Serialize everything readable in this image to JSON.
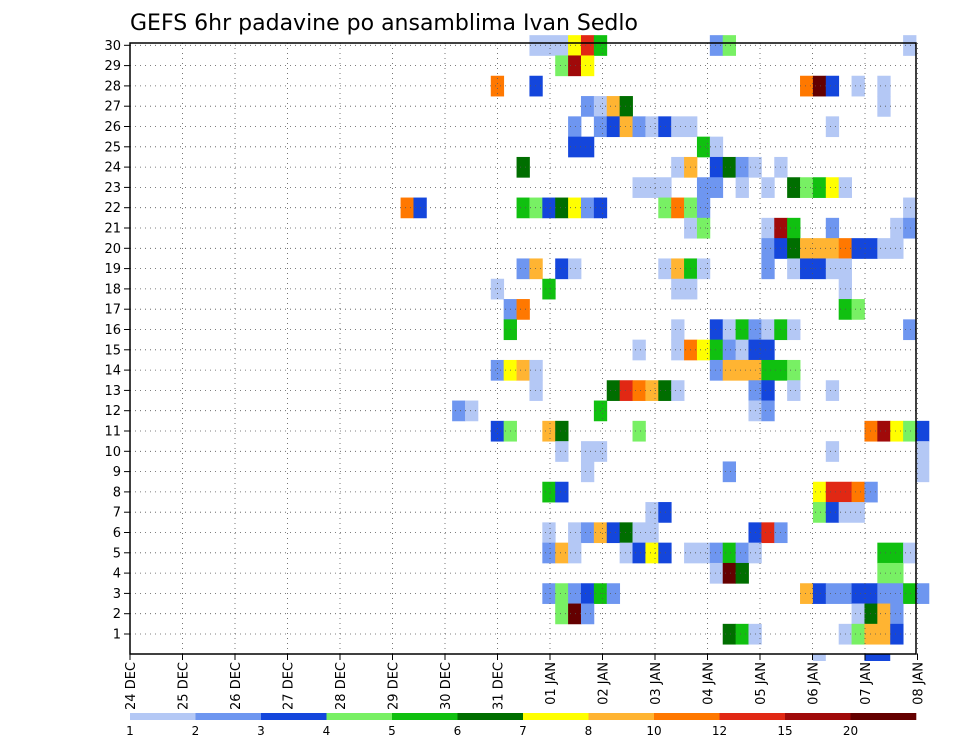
{
  "chart_data": {
    "type": "heatmap",
    "title": "GEFS 6hr padavine po ansamblima Ivan Sedlo",
    "y_ticks": [
      "1",
      "2",
      "3",
      "4",
      "5",
      "6",
      "7",
      "8",
      "9",
      "10",
      "11",
      "12",
      "13",
      "14",
      "15",
      "16",
      "17",
      "18",
      "19",
      "20",
      "21",
      "22",
      "23",
      "24",
      "25",
      "26",
      "27",
      "28",
      "29",
      "30"
    ],
    "x_ticks": [
      "24 DEC",
      "25 DEC",
      "26 DEC",
      "27 DEC",
      "28 DEC",
      "29 DEC",
      "30 DEC",
      "31 DEC",
      "01 JAN",
      "02 JAN",
      "03 JAN",
      "04 JAN",
      "05 JAN",
      "06 JAN",
      "07 JAN",
      "08 JAN"
    ],
    "legend_labels": [
      "1",
      "2",
      "3",
      "4",
      "5",
      "6",
      "7",
      "8",
      "10",
      "12",
      "15",
      "20"
    ],
    "legend_colors": [
      "#b4c8f5",
      "#6e96f0",
      "#1446dc",
      "#78f064",
      "#10c010",
      "#006e00",
      "#ffff00",
      "#ffb432",
      "#ff7800",
      "#e12814",
      "#a00a0a",
      "#640000"
    ],
    "grid": true,
    "cell_unit": "6h step",
    "cells": [
      {
        "m": 30,
        "s": [
          [
            31,
            3,
            0
          ],
          [
            34,
            1,
            6
          ],
          [
            35,
            1,
            9
          ],
          [
            36,
            1,
            4
          ],
          [
            45,
            1,
            1
          ],
          [
            46,
            1,
            3
          ],
          [
            60,
            1,
            0
          ]
        ]
      },
      {
        "m": 29,
        "s": [
          [
            33,
            1,
            3
          ],
          [
            34,
            1,
            10
          ],
          [
            35,
            1,
            6
          ]
        ]
      },
      {
        "m": 28,
        "s": [
          [
            28,
            1,
            8
          ],
          [
            31,
            1,
            2
          ],
          [
            52,
            1,
            8
          ],
          [
            53,
            1,
            11
          ],
          [
            54,
            1,
            2
          ],
          [
            56,
            1,
            0
          ],
          [
            58,
            1,
            0
          ]
        ]
      },
      {
        "m": 27,
        "s": [
          [
            35,
            1,
            1
          ],
          [
            36,
            1,
            0
          ],
          [
            37,
            1,
            7
          ],
          [
            38,
            1,
            5
          ],
          [
            58,
            1,
            0
          ]
        ]
      },
      {
        "m": 26,
        "s": [
          [
            34,
            1,
            1
          ],
          [
            36,
            1,
            1
          ],
          [
            37,
            1,
            2
          ],
          [
            38,
            1,
            7
          ],
          [
            39,
            1,
            1
          ],
          [
            40,
            1,
            0
          ],
          [
            41,
            1,
            2
          ],
          [
            42,
            2,
            0
          ],
          [
            54,
            1,
            0
          ]
        ]
      },
      {
        "m": 25,
        "s": [
          [
            34,
            2,
            2
          ],
          [
            44,
            1,
            4
          ],
          [
            45,
            1,
            0
          ]
        ]
      },
      {
        "m": 24,
        "s": [
          [
            30,
            1,
            5
          ],
          [
            42,
            1,
            0
          ],
          [
            43,
            1,
            7
          ],
          [
            45,
            1,
            2
          ],
          [
            46,
            1,
            5
          ],
          [
            47,
            1,
            1
          ],
          [
            48,
            1,
            0
          ],
          [
            50,
            1,
            0
          ]
        ]
      },
      {
        "m": 23,
        "s": [
          [
            39,
            3,
            0
          ],
          [
            44,
            2,
            1
          ],
          [
            47,
            1,
            0
          ],
          [
            49,
            1,
            0
          ],
          [
            51,
            1,
            5
          ],
          [
            52,
            1,
            3
          ],
          [
            53,
            1,
            4
          ],
          [
            54,
            1,
            6
          ],
          [
            55,
            1,
            0
          ]
        ]
      },
      {
        "m": 22,
        "s": [
          [
            21,
            1,
            8
          ],
          [
            22,
            1,
            2
          ],
          [
            30,
            1,
            4
          ],
          [
            31,
            1,
            3
          ],
          [
            32,
            1,
            2
          ],
          [
            33,
            1,
            5
          ],
          [
            34,
            1,
            6
          ],
          [
            35,
            1,
            1
          ],
          [
            36,
            1,
            2
          ],
          [
            41,
            1,
            3
          ],
          [
            42,
            1,
            8
          ],
          [
            43,
            1,
            3
          ],
          [
            44,
            1,
            1
          ],
          [
            60,
            1,
            0
          ]
        ]
      },
      {
        "m": 21,
        "s": [
          [
            43,
            1,
            0
          ],
          [
            44,
            1,
            3
          ],
          [
            49,
            1,
            0
          ],
          [
            50,
            1,
            10
          ],
          [
            51,
            1,
            4
          ],
          [
            54,
            1,
            1
          ],
          [
            59,
            1,
            0
          ],
          [
            60,
            1,
            1
          ]
        ]
      },
      {
        "m": 20,
        "s": [
          [
            49,
            1,
            1
          ],
          [
            50,
            1,
            2
          ],
          [
            51,
            1,
            5
          ],
          [
            52,
            3,
            7
          ],
          [
            55,
            1,
            8
          ],
          [
            56,
            2,
            2
          ],
          [
            58,
            2,
            0
          ]
        ]
      },
      {
        "m": 19,
        "s": [
          [
            30,
            1,
            1
          ],
          [
            31,
            1,
            7
          ],
          [
            33,
            1,
            2
          ],
          [
            34,
            1,
            0
          ],
          [
            41,
            1,
            0
          ],
          [
            42,
            1,
            7
          ],
          [
            43,
            1,
            4
          ],
          [
            44,
            1,
            0
          ],
          [
            49,
            1,
            1
          ],
          [
            51,
            1,
            0
          ],
          [
            52,
            2,
            2
          ],
          [
            54,
            2,
            0
          ]
        ]
      },
      {
        "m": 18,
        "s": [
          [
            28,
            1,
            0
          ],
          [
            32,
            1,
            4
          ],
          [
            42,
            1,
            0
          ],
          [
            43,
            1,
            0
          ],
          [
            55,
            1,
            0
          ]
        ]
      },
      {
        "m": 17,
        "s": [
          [
            29,
            1,
            1
          ],
          [
            30,
            1,
            8
          ],
          [
            55,
            1,
            4
          ],
          [
            56,
            1,
            3
          ]
        ]
      },
      {
        "m": 16,
        "s": [
          [
            29,
            1,
            4
          ],
          [
            42,
            1,
            0
          ],
          [
            45,
            1,
            2
          ],
          [
            46,
            1,
            0
          ],
          [
            47,
            1,
            4
          ],
          [
            48,
            1,
            1
          ],
          [
            49,
            1,
            0
          ],
          [
            50,
            1,
            4
          ],
          [
            51,
            1,
            0
          ],
          [
            60,
            1,
            1
          ]
        ]
      },
      {
        "m": 15,
        "s": [
          [
            39,
            1,
            0
          ],
          [
            42,
            1,
            0
          ],
          [
            43,
            1,
            8
          ],
          [
            44,
            1,
            6
          ],
          [
            45,
            1,
            4
          ],
          [
            46,
            1,
            1
          ],
          [
            47,
            1,
            0
          ],
          [
            48,
            2,
            2
          ]
        ]
      },
      {
        "m": 14,
        "s": [
          [
            28,
            1,
            1
          ],
          [
            29,
            1,
            6
          ],
          [
            30,
            1,
            7
          ],
          [
            31,
            1,
            0
          ],
          [
            45,
            1,
            1
          ],
          [
            46,
            3,
            7
          ],
          [
            49,
            2,
            4
          ],
          [
            51,
            1,
            3
          ]
        ]
      },
      {
        "m": 13,
        "s": [
          [
            31,
            1,
            0
          ],
          [
            37,
            1,
            5
          ],
          [
            38,
            1,
            9
          ],
          [
            39,
            1,
            8
          ],
          [
            40,
            1,
            7
          ],
          [
            41,
            1,
            5
          ],
          [
            42,
            1,
            0
          ],
          [
            48,
            1,
            1
          ],
          [
            49,
            1,
            2
          ],
          [
            51,
            1,
            0
          ],
          [
            54,
            1,
            0
          ]
        ]
      },
      {
        "m": 12,
        "s": [
          [
            25,
            1,
            1
          ],
          [
            26,
            1,
            0
          ],
          [
            36,
            1,
            4
          ],
          [
            48,
            1,
            0
          ],
          [
            49,
            1,
            1
          ]
        ]
      },
      {
        "m": 11,
        "s": [
          [
            28,
            1,
            2
          ],
          [
            29,
            1,
            3
          ],
          [
            32,
            1,
            7
          ],
          [
            33,
            1,
            5
          ],
          [
            39,
            1,
            3
          ],
          [
            57,
            1,
            8
          ],
          [
            58,
            1,
            10
          ],
          [
            59,
            1,
            6
          ],
          [
            60,
            1,
            3
          ],
          [
            61,
            1,
            2
          ]
        ]
      },
      {
        "m": 10,
        "s": [
          [
            33,
            1,
            0
          ],
          [
            35,
            2,
            0
          ],
          [
            54,
            1,
            0
          ],
          [
            61,
            1,
            0
          ]
        ]
      },
      {
        "m": 9,
        "s": [
          [
            35,
            1,
            0
          ],
          [
            46,
            1,
            1
          ],
          [
            61,
            1,
            0
          ]
        ]
      },
      {
        "m": 8,
        "s": [
          [
            32,
            1,
            4
          ],
          [
            33,
            1,
            2
          ],
          [
            53,
            1,
            6
          ],
          [
            54,
            2,
            9
          ],
          [
            56,
            1,
            8
          ],
          [
            57,
            1,
            1
          ]
        ]
      },
      {
        "m": 7,
        "s": [
          [
            40,
            1,
            0
          ],
          [
            41,
            1,
            2
          ],
          [
            53,
            1,
            3
          ],
          [
            54,
            1,
            2
          ],
          [
            55,
            2,
            0
          ]
        ]
      },
      {
        "m": 6,
        "s": [
          [
            32,
            1,
            0
          ],
          [
            34,
            1,
            0
          ],
          [
            35,
            1,
            1
          ],
          [
            36,
            1,
            7
          ],
          [
            37,
            1,
            2
          ],
          [
            38,
            1,
            5
          ],
          [
            39,
            2,
            0
          ],
          [
            48,
            1,
            2
          ],
          [
            49,
            1,
            9
          ],
          [
            50,
            1,
            1
          ]
        ]
      },
      {
        "m": 5,
        "s": [
          [
            32,
            1,
            1
          ],
          [
            33,
            1,
            7
          ],
          [
            34,
            1,
            0
          ],
          [
            38,
            1,
            0
          ],
          [
            39,
            1,
            2
          ],
          [
            40,
            1,
            6
          ],
          [
            41,
            1,
            2
          ],
          [
            43,
            2,
            0
          ],
          [
            45,
            1,
            1
          ],
          [
            46,
            1,
            4
          ],
          [
            47,
            1,
            1
          ],
          [
            48,
            1,
            0
          ],
          [
            58,
            2,
            4
          ],
          [
            60,
            1,
            0
          ]
        ]
      },
      {
        "m": 4,
        "s": [
          [
            45,
            1,
            0
          ],
          [
            46,
            1,
            11
          ],
          [
            47,
            1,
            5
          ],
          [
            58,
            2,
            3
          ]
        ]
      },
      {
        "m": 3,
        "s": [
          [
            32,
            1,
            1
          ],
          [
            33,
            1,
            3
          ],
          [
            34,
            1,
            1
          ],
          [
            35,
            1,
            2
          ],
          [
            36,
            1,
            4
          ],
          [
            37,
            1,
            1
          ],
          [
            52,
            1,
            7
          ],
          [
            53,
            1,
            2
          ],
          [
            54,
            2,
            1
          ],
          [
            56,
            2,
            2
          ],
          [
            58,
            1,
            1
          ],
          [
            59,
            1,
            1
          ],
          [
            60,
            1,
            4
          ],
          [
            61,
            1,
            1
          ]
        ]
      },
      {
        "m": 2,
        "s": [
          [
            33,
            1,
            3
          ],
          [
            34,
            1,
            11
          ],
          [
            35,
            1,
            1
          ],
          [
            56,
            1,
            0
          ],
          [
            57,
            1,
            5
          ],
          [
            58,
            1,
            7
          ],
          [
            59,
            1,
            1
          ]
        ]
      },
      {
        "m": 1,
        "s": [
          [
            46,
            1,
            5
          ],
          [
            47,
            1,
            4
          ],
          [
            48,
            1,
            0
          ],
          [
            55,
            1,
            0
          ],
          [
            56,
            1,
            3
          ],
          [
            57,
            2,
            7
          ],
          [
            59,
            1,
            2
          ]
        ]
      }
    ],
    "extra_below": [
      [
        53,
        1,
        0
      ],
      [
        57,
        2,
        2
      ]
    ]
  }
}
